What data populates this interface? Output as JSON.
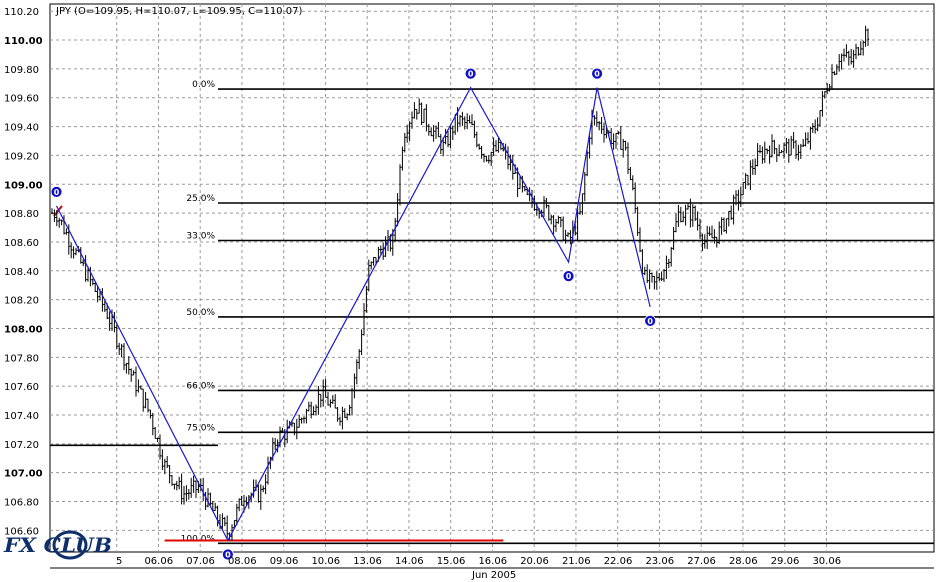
{
  "window": {
    "title": "JPY (O=109.95, H=110.07, L=109.95, C=110.07)"
  },
  "logo": {
    "text": "FX CLUB"
  },
  "chart_data": {
    "type": "candlestick",
    "symbol": "JPY",
    "quote": {
      "open": 109.95,
      "high": 110.07,
      "low": 109.95,
      "close": 110.07
    },
    "ylim": [
      106.45,
      110.25
    ],
    "y_ticks": [
      "110.20",
      "110.00",
      "109.80",
      "109.60",
      "109.40",
      "109.20",
      "109.00",
      "108.80",
      "108.60",
      "108.40",
      "108.20",
      "108.00",
      "107.80",
      "107.60",
      "107.40",
      "107.20",
      "107.00",
      "106.80",
      "106.60"
    ],
    "y_ticks_bold": [
      "110.00",
      "109.00",
      "108.00",
      "107.00"
    ],
    "x_ticks": [
      "5",
      "06.06",
      "07.06",
      "08.06",
      "09.06",
      "10.06",
      "13.06",
      "14.06",
      "15.06",
      "16.06",
      "20.06",
      "21.06",
      "22.06",
      "23.06",
      "27.06",
      "28.06",
      "29.06",
      "30.06"
    ],
    "x_month_label": "Jun 2005",
    "grid": true,
    "fibonacci": [
      {
        "label": "0.0%",
        "value": 109.66
      },
      {
        "label": "25.0%",
        "value": 108.87
      },
      {
        "label": "33.0%",
        "value": 108.61
      },
      {
        "label": "50.0%",
        "value": 108.08
      },
      {
        "label": "66.0%",
        "value": 107.57
      },
      {
        "label": "75.0%",
        "value": 107.28
      },
      {
        "label": "100.0%",
        "value": 106.51
      }
    ],
    "hline_left": {
      "value": 107.19
    },
    "red_line": {
      "value": 106.53,
      "from_index": 5.3,
      "to_index": 21.9
    },
    "zigzag": [
      {
        "i": 0.0,
        "v": 108.85,
        "marker": "0",
        "pos": "above"
      },
      {
        "i": 8.4,
        "v": 106.53,
        "marker": "0",
        "pos": "below"
      },
      {
        "i": 20.3,
        "v": 109.67,
        "marker": "0",
        "pos": "above"
      },
      {
        "i": 25.1,
        "v": 108.46,
        "marker": "0",
        "pos": "below"
      },
      {
        "i": 26.5,
        "v": 109.67,
        "marker": "0",
        "pos": "above"
      },
      {
        "i": 29.1,
        "v": 108.15,
        "marker": "0",
        "pos": "below"
      }
    ],
    "waypoints": [
      [
        0,
        108.8
      ],
      [
        1.2,
        108.45
      ],
      [
        2.5,
        108.1
      ],
      [
        3.6,
        107.7
      ],
      [
        4.6,
        107.4
      ],
      [
        5.3,
        107.05
      ],
      [
        6.2,
        106.85
      ],
      [
        7.0,
        106.9
      ],
      [
        7.8,
        106.7
      ],
      [
        8.4,
        106.58
      ],
      [
        9.2,
        106.85
      ],
      [
        10.0,
        106.85
      ],
      [
        10.8,
        107.25
      ],
      [
        11.6,
        107.3
      ],
      [
        12.4,
        107.45
      ],
      [
        13.0,
        107.55
      ],
      [
        13.8,
        107.4
      ],
      [
        14.3,
        107.45
      ],
      [
        14.8,
        107.8
      ],
      [
        15.3,
        108.4
      ],
      [
        15.9,
        108.55
      ],
      [
        16.5,
        108.6
      ],
      [
        17.0,
        109.35
      ],
      [
        17.6,
        109.55
      ],
      [
        18.3,
        109.4
      ],
      [
        19.0,
        109.25
      ],
      [
        19.6,
        109.45
      ],
      [
        20.3,
        109.4
      ],
      [
        21.0,
        109.2
      ],
      [
        21.8,
        109.25
      ],
      [
        22.5,
        109.05
      ],
      [
        23.0,
        108.9
      ],
      [
        23.8,
        108.85
      ],
      [
        24.5,
        108.75
      ],
      [
        25.1,
        108.6
      ],
      [
        25.7,
        108.8
      ],
      [
        26.2,
        109.45
      ],
      [
        26.8,
        109.4
      ],
      [
        27.3,
        109.3
      ],
      [
        27.8,
        109.3
      ],
      [
        28.3,
        108.9
      ],
      [
        28.8,
        108.35
      ],
      [
        29.3,
        108.3
      ],
      [
        29.9,
        108.45
      ],
      [
        30.5,
        108.8
      ],
      [
        31.2,
        108.8
      ],
      [
        31.8,
        108.6
      ],
      [
        32.4,
        108.65
      ],
      [
        33.0,
        108.8
      ],
      [
        33.6,
        108.95
      ],
      [
        34.2,
        109.15
      ],
      [
        34.8,
        109.25
      ],
      [
        35.4,
        109.25
      ],
      [
        36.0,
        109.25
      ],
      [
        36.6,
        109.25
      ],
      [
        37.2,
        109.4
      ],
      [
        37.8,
        109.7
      ],
      [
        38.4,
        109.9
      ],
      [
        39.0,
        109.85
      ],
      [
        39.6,
        110.05
      ]
    ]
  }
}
